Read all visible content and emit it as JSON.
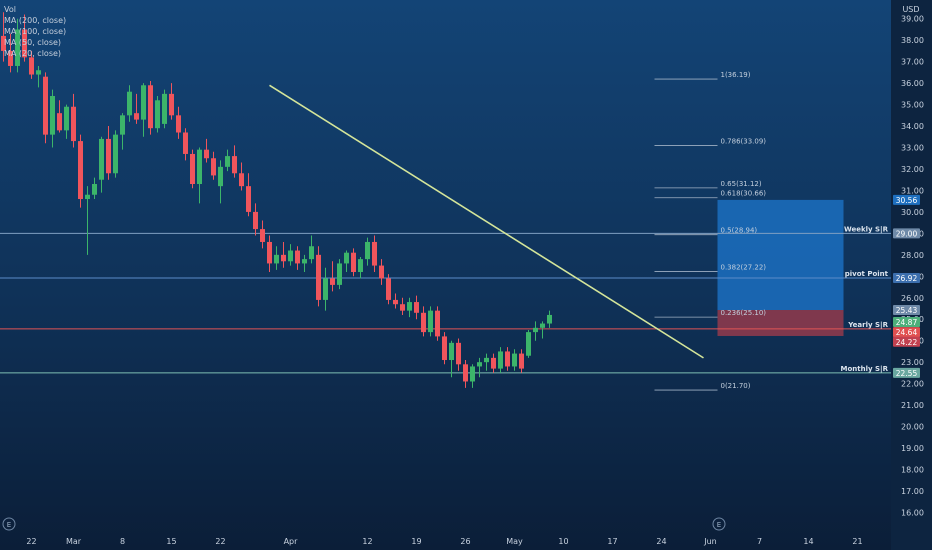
{
  "legend": {
    "items": [
      "Vol",
      "MA (200, close)",
      "MA (100, close)",
      "MA (50, close)",
      "MA (20, close)"
    ]
  },
  "chart_data": {
    "type": "candlestick",
    "currency": "USD",
    "y_ticks": [
      16.0,
      17.0,
      18.0,
      19.0,
      20.0,
      21.0,
      22.0,
      23.0,
      24.0,
      25.0,
      26.0,
      27.0,
      28.0,
      29.0,
      30.0,
      31.0,
      32.0,
      33.0,
      34.0,
      35.0,
      36.0,
      37.0,
      38.0,
      39.0
    ],
    "ylim": [
      15.6,
      39.5
    ],
    "x_ticks": [
      {
        "label": "22",
        "x": 4
      },
      {
        "label": "Mar",
        "x": 10
      },
      {
        "label": "8",
        "x": 17
      },
      {
        "label": "15",
        "x": 24
      },
      {
        "label": "22",
        "x": 31
      },
      {
        "label": "Apr",
        "x": 41
      },
      {
        "label": "12",
        "x": 52
      },
      {
        "label": "19",
        "x": 59
      },
      {
        "label": "26",
        "x": 66
      },
      {
        "label": "May",
        "x": 73
      },
      {
        "label": "10",
        "x": 80
      },
      {
        "label": "17",
        "x": 87
      },
      {
        "label": "24",
        "x": 94
      },
      {
        "label": "Jun",
        "x": 101
      },
      {
        "label": "7",
        "x": 108
      },
      {
        "label": "14",
        "x": 115
      },
      {
        "label": "21",
        "x": 122
      }
    ],
    "candles": [
      [
        38.2,
        39.3,
        37.0,
        37.5
      ],
      [
        37.5,
        38.3,
        36.5,
        36.8
      ],
      [
        36.8,
        39.0,
        36.5,
        38.5
      ],
      [
        38.5,
        39.2,
        37.0,
        37.2
      ],
      [
        37.2,
        37.5,
        36.2,
        36.4
      ],
      [
        36.4,
        36.8,
        35.8,
        36.6
      ],
      [
        36.3,
        36.5,
        33.2,
        33.6
      ],
      [
        33.6,
        35.7,
        33.0,
        35.4
      ],
      [
        34.6,
        35.2,
        33.7,
        33.8
      ],
      [
        33.8,
        35.0,
        33.4,
        34.9
      ],
      [
        34.9,
        35.5,
        33.0,
        33.3
      ],
      [
        33.3,
        33.6,
        30.2,
        30.6
      ],
      [
        30.6,
        31.2,
        28.0,
        30.8
      ],
      [
        30.8,
        31.6,
        30.6,
        31.3
      ],
      [
        31.5,
        33.5,
        30.9,
        33.4
      ],
      [
        33.4,
        34.0,
        31.5,
        31.8
      ],
      [
        31.8,
        33.8,
        31.6,
        33.6
      ],
      [
        33.6,
        34.6,
        32.9,
        34.5
      ],
      [
        34.5,
        35.9,
        34.2,
        35.6
      ],
      [
        34.6,
        35.5,
        34.1,
        34.3
      ],
      [
        34.3,
        36.0,
        33.5,
        35.9
      ],
      [
        35.9,
        36.1,
        33.6,
        33.9
      ],
      [
        33.9,
        35.4,
        33.7,
        35.2
      ],
      [
        34.1,
        35.7,
        33.9,
        35.5
      ],
      [
        35.5,
        36.0,
        34.3,
        34.5
      ],
      [
        34.5,
        34.9,
        33.4,
        33.7
      ],
      [
        33.7,
        33.9,
        32.4,
        32.7
      ],
      [
        32.7,
        32.9,
        31.1,
        31.3
      ],
      [
        31.3,
        33.0,
        30.4,
        32.9
      ],
      [
        32.9,
        33.4,
        32.3,
        32.5
      ],
      [
        32.5,
        32.8,
        31.5,
        31.7
      ],
      [
        31.2,
        32.4,
        30.4,
        32.1
      ],
      [
        32.1,
        32.9,
        31.9,
        32.6
      ],
      [
        32.6,
        33.1,
        31.6,
        31.8
      ],
      [
        31.8,
        32.3,
        31.0,
        31.2
      ],
      [
        31.2,
        31.8,
        29.8,
        30.0
      ],
      [
        30.0,
        30.4,
        28.9,
        29.2
      ],
      [
        29.2,
        29.6,
        28.3,
        28.6
      ],
      [
        28.6,
        28.9,
        27.2,
        27.6
      ],
      [
        27.6,
        28.4,
        27.3,
        28.0
      ],
      [
        28.0,
        28.6,
        27.4,
        27.7
      ],
      [
        27.7,
        28.5,
        27.5,
        28.2
      ],
      [
        28.2,
        28.4,
        27.3,
        27.6
      ],
      [
        27.6,
        28.0,
        27.2,
        27.8
      ],
      [
        27.8,
        28.9,
        27.6,
        28.4
      ],
      [
        28.0,
        28.4,
        25.6,
        25.9
      ],
      [
        25.9,
        27.4,
        25.4,
        26.9
      ],
      [
        26.9,
        27.7,
        26.3,
        26.6
      ],
      [
        26.6,
        27.8,
        26.4,
        27.6
      ],
      [
        27.6,
        28.2,
        27.2,
        28.1
      ],
      [
        28.1,
        28.3,
        27.0,
        27.2
      ],
      [
        27.2,
        27.9,
        26.9,
        27.8
      ],
      [
        27.8,
        28.8,
        27.5,
        28.6
      ],
      [
        28.6,
        28.9,
        27.2,
        27.5
      ],
      [
        27.5,
        27.8,
        26.6,
        26.9
      ],
      [
        26.9,
        27.1,
        25.7,
        25.9
      ],
      [
        25.9,
        26.2,
        25.5,
        25.7
      ],
      [
        25.7,
        26.0,
        25.2,
        25.4
      ],
      [
        25.4,
        26.0,
        25.1,
        25.8
      ],
      [
        25.8,
        26.1,
        25.0,
        25.3
      ],
      [
        25.3,
        25.6,
        24.2,
        24.4
      ],
      [
        24.4,
        25.6,
        24.2,
        25.4
      ],
      [
        25.4,
        25.6,
        24.0,
        24.2
      ],
      [
        24.2,
        24.4,
        22.9,
        23.1
      ],
      [
        23.1,
        24.0,
        22.3,
        23.9
      ],
      [
        23.9,
        24.1,
        22.6,
        22.9
      ],
      [
        22.9,
        23.1,
        21.8,
        22.1
      ],
      [
        22.1,
        22.9,
        21.8,
        22.8
      ],
      [
        22.8,
        23.2,
        22.3,
        23.0
      ],
      [
        23.0,
        23.4,
        22.6,
        23.2
      ],
      [
        23.2,
        23.4,
        22.5,
        22.7
      ],
      [
        22.7,
        23.7,
        22.5,
        23.5
      ],
      [
        23.5,
        23.7,
        22.6,
        22.8
      ],
      [
        22.8,
        23.6,
        22.6,
        23.4
      ],
      [
        23.4,
        23.6,
        22.5,
        22.7
      ],
      [
        23.3,
        24.5,
        23.2,
        24.4
      ],
      [
        24.4,
        24.9,
        24.0,
        24.6
      ],
      [
        24.6,
        24.9,
        24.1,
        24.8
      ],
      [
        24.8,
        25.4,
        24.6,
        25.2
      ]
    ],
    "volume": [],
    "volume_scale": {
      "chart_top": 15.6,
      "pane_top": 400
    },
    "moving_averages": [],
    "trendline": {
      "from": [
        38,
        35.9
      ],
      "to": [
        100,
        23.2
      ],
      "color": "#d4e59a"
    },
    "fibonacci": {
      "x_from": 93,
      "x_to": 102,
      "levels": [
        {
          "label": "1(36.19)",
          "price": 36.19
        },
        {
          "label": "0.786(33.09)",
          "price": 33.09
        },
        {
          "label": "0.65(31.12)",
          "price": 31.12
        },
        {
          "label": "0.618(30.66)",
          "price": 30.66
        },
        {
          "label": "0.5(28.94)",
          "price": 28.94
        },
        {
          "label": "0.382(27.22)",
          "price": 27.22
        },
        {
          "label": "0.236(25.10)",
          "price": 25.1
        },
        {
          "label": "0(21.70)",
          "price": 21.7
        }
      ]
    },
    "sr_lines": [
      {
        "label": "Weekly S|R",
        "price": 29.0,
        "color": "#7f9fc2"
      },
      {
        "label": "pivot Point",
        "price": 26.92,
        "color": "#5b8cc9"
      },
      {
        "label": "Yearly S|R",
        "price": 24.55,
        "color": "#e05555"
      },
      {
        "label": "Monthly S|R",
        "price": 22.5,
        "color": "#7fbfb3"
      }
    ],
    "position_tool": {
      "x_from": 102,
      "x_to": 120,
      "target": 30.56,
      "entry": 25.43,
      "stop": 24.22,
      "target_color": "#1b6ec0",
      "stop_color": "#8c3a4d"
    },
    "price_tags": [
      {
        "label": "30.56",
        "price": 30.56,
        "bg": "#1e6fbf",
        "fg": "#ffffff"
      },
      {
        "label": "29.00",
        "price": 29.0,
        "bg": "#6f8aa8",
        "fg": "#ffffff"
      },
      {
        "label": "26.92",
        "price": 26.92,
        "bg": "#3c6fae",
        "fg": "#ffffff"
      },
      {
        "label": "25.43",
        "price": 25.43,
        "bg": "#6f8aa8",
        "fg": "#ffffff"
      },
      {
        "label": "24.87",
        "price": 24.87,
        "bg": "#4caf7a",
        "fg": "#ffffff"
      },
      {
        "label": "24.64",
        "price": 24.4,
        "bg": "#e15050",
        "fg": "#ffffff"
      },
      {
        "label": "24.22",
        "price": 23.95,
        "bg": "#c24150",
        "fg": "#ffffff"
      },
      {
        "label": "22.55",
        "price": 22.5,
        "bg": "#6aa7a0",
        "fg": "#ffffff"
      }
    ],
    "colors": {
      "up": "#3cb56a",
      "down": "#f0555c",
      "vol_up": "#2d8a8a",
      "vol_down": "#8a3050",
      "axis_text": "#c9d3e0",
      "grid": "#1d3a5c"
    }
  }
}
